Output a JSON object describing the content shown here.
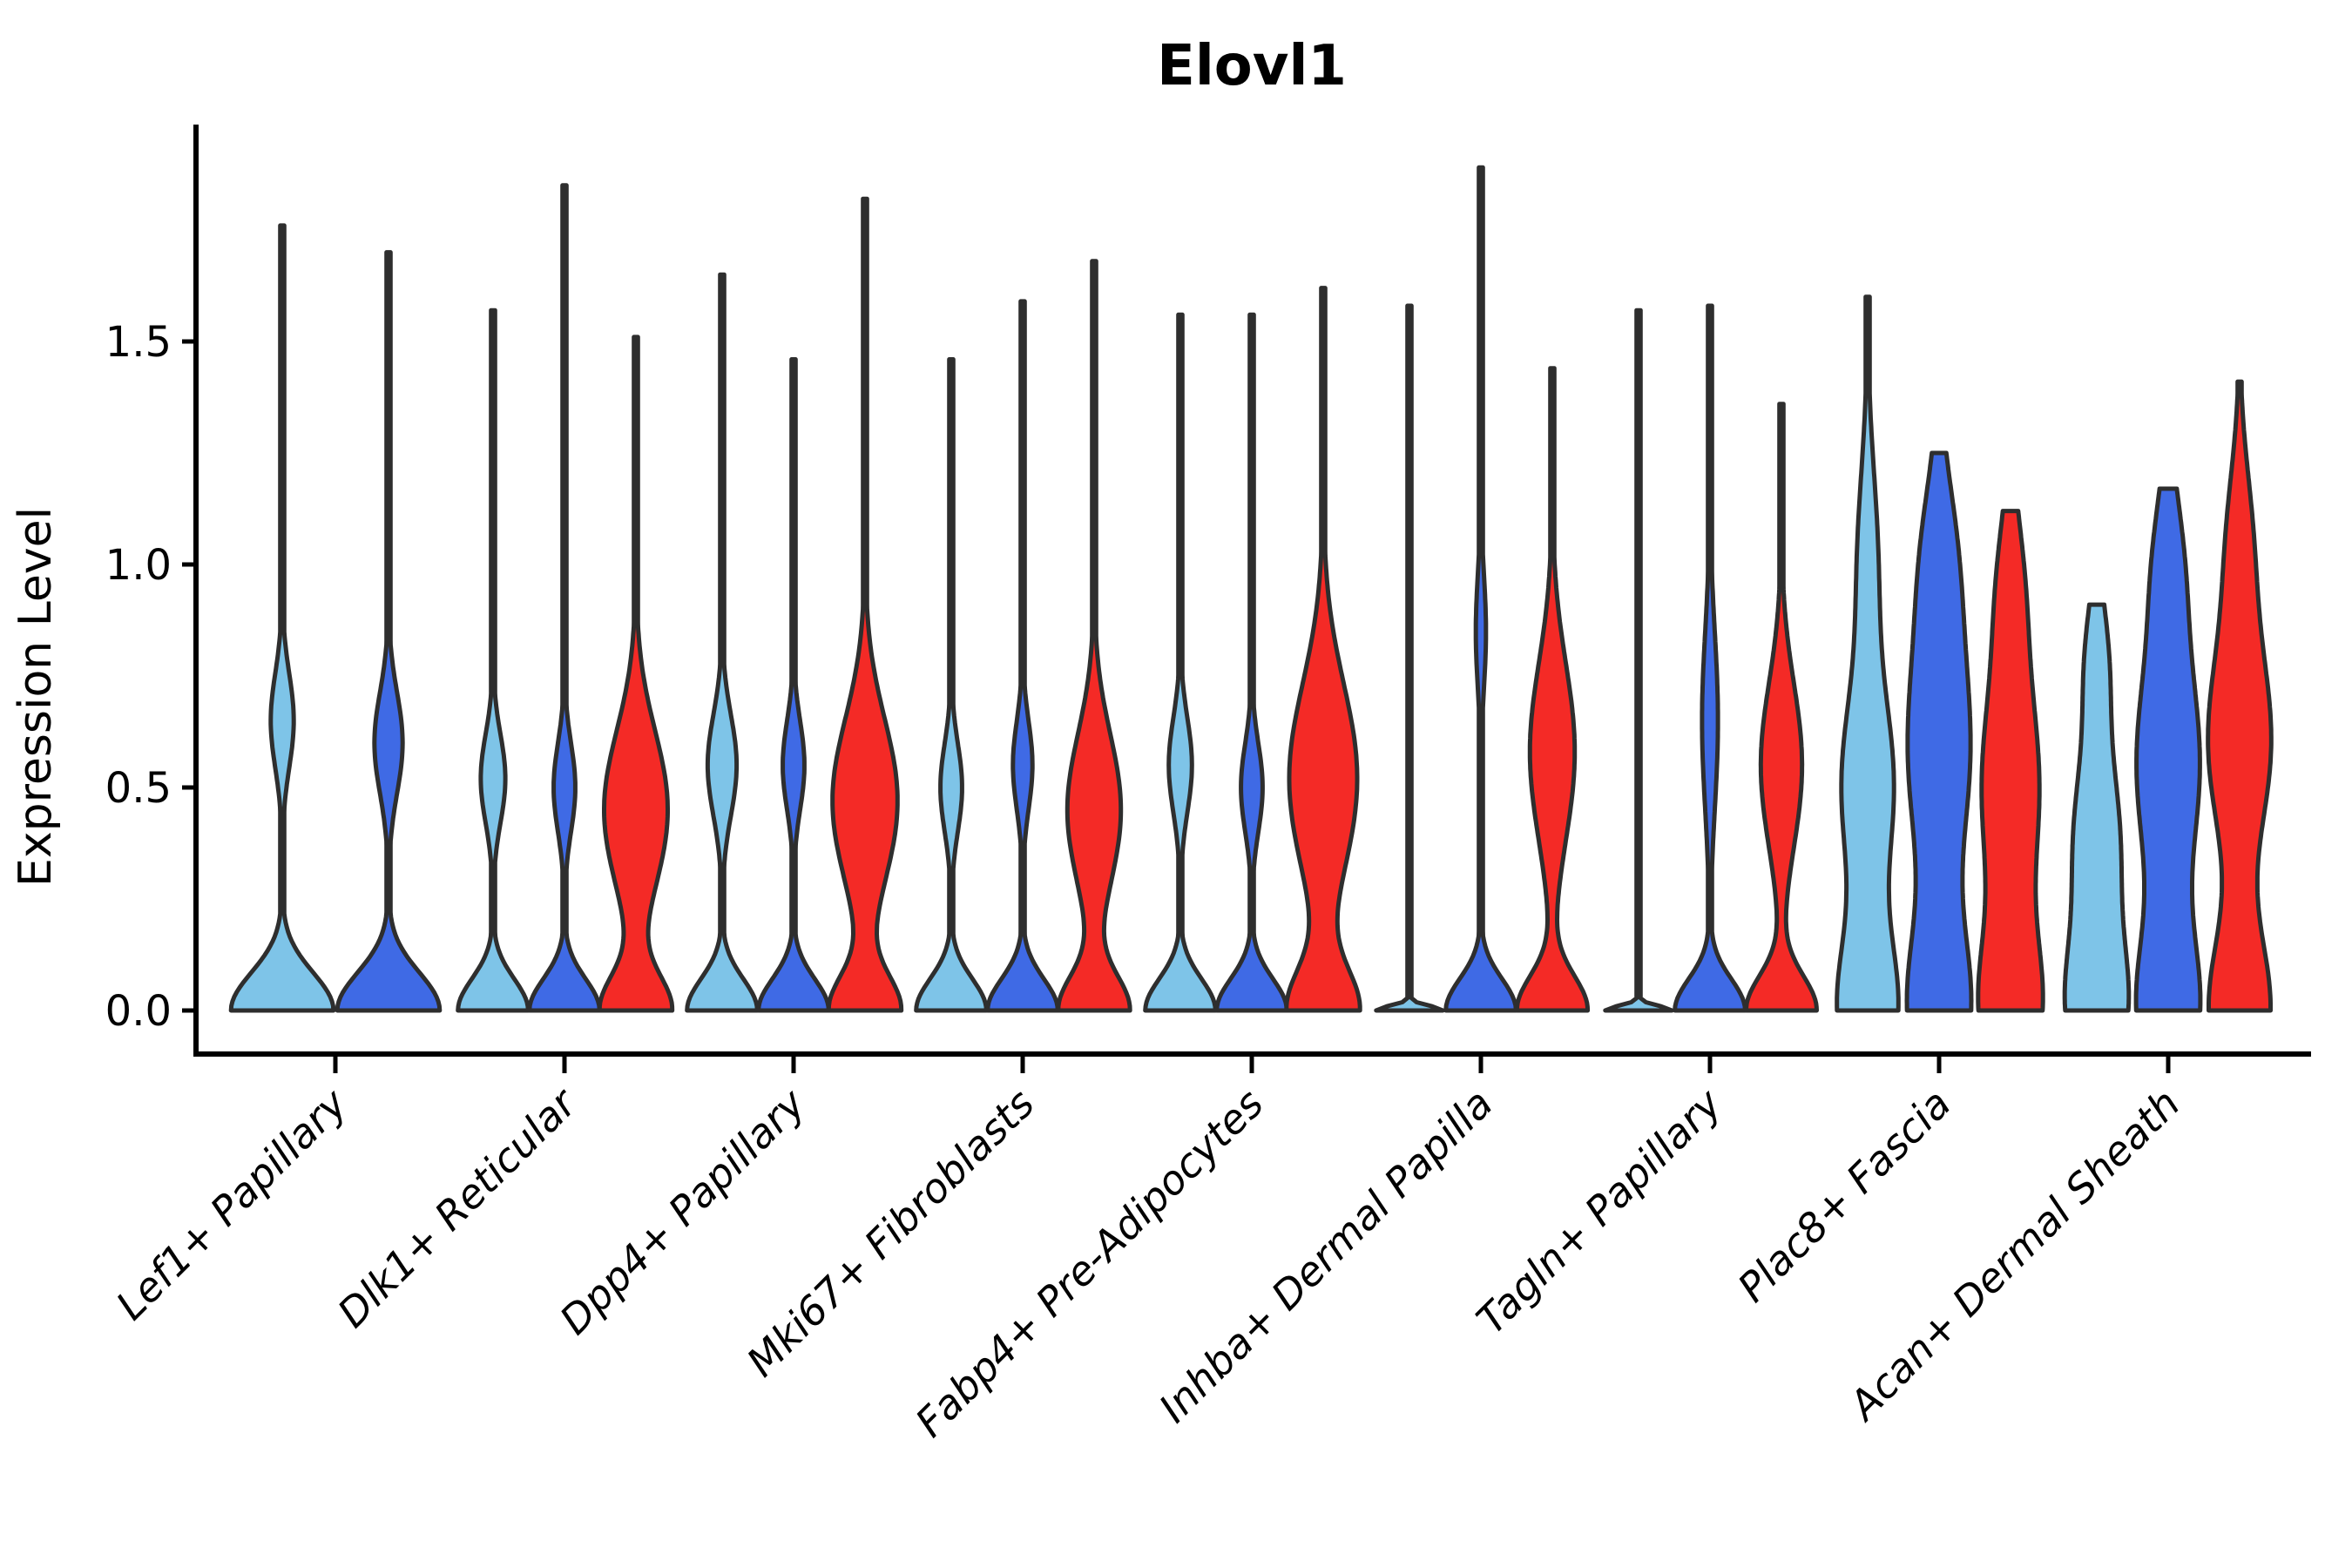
{
  "chart_data": {
    "type": "violin",
    "title": "Elovl1",
    "ylabel": "Expression Level",
    "xlabel": "",
    "ylim": [
      -0.1,
      1.98
    ],
    "grid": false,
    "legend_position": "none",
    "ytick_values": [
      0.0,
      0.5,
      1.0,
      1.5
    ],
    "ytick_labels": [
      "0.0",
      "0.5",
      "1.0",
      "1.5"
    ],
    "categories": [
      "Lef1+ Papillary",
      "Dlk1+ Reticular",
      "Dpp4+ Papillary",
      "Mki67+ Fibroblasts",
      "Fabp4+ Pre-Adipocytes",
      "Inhba+ Dermal Papilla",
      "Tagln+ Papillary",
      "Plac8+ Fascia",
      "Acan+ Dermal Sheath"
    ],
    "series": [
      {
        "id": "light-blue",
        "color": "#7EC4E8"
      },
      {
        "id": "royal-blue",
        "color": "#3F6AE5"
      },
      {
        "id": "red",
        "color": "#F42A26"
      }
    ],
    "outline_color": "#2E2E2E",
    "groups": [
      {
        "category": "Lef1+ Papillary",
        "violins": [
          {
            "series": "light-blue",
            "max": 1.76,
            "base_w": 0.98,
            "base_h": 0.12,
            "bumps": [
              {
                "c": 0.65,
                "s": 0.15,
                "w": 0.22
              }
            ]
          },
          {
            "series": "royal-blue",
            "max": 1.7,
            "base_w": 0.98,
            "base_h": 0.12,
            "bumps": [
              {
                "c": 0.6,
                "s": 0.16,
                "w": 0.27
              }
            ]
          }
        ]
      },
      {
        "category": "Dlk1+ Reticular",
        "violins": [
          {
            "series": "light-blue",
            "max": 1.57,
            "base_w": 0.97,
            "base_h": 0.1,
            "bumps": [
              {
                "c": 0.52,
                "s": 0.14,
                "w": 0.34
              }
            ]
          },
          {
            "series": "royal-blue",
            "max": 1.85,
            "base_w": 0.97,
            "base_h": 0.1,
            "bumps": [
              {
                "c": 0.5,
                "s": 0.14,
                "w": 0.3
              }
            ]
          },
          {
            "series": "red",
            "max": 1.51,
            "base_w": 0.97,
            "base_h": 0.11,
            "bumps": [
              {
                "c": 0.45,
                "s": 0.25,
                "w": 0.88
              }
            ]
          }
        ]
      },
      {
        "category": "Dpp4+ Papillary",
        "violins": [
          {
            "series": "light-blue",
            "max": 1.65,
            "base_w": 0.97,
            "base_h": 0.1,
            "bumps": [
              {
                "c": 0.55,
                "s": 0.16,
                "w": 0.4
              }
            ]
          },
          {
            "series": "royal-blue",
            "max": 1.46,
            "base_w": 0.97,
            "base_h": 0.1,
            "bumps": [
              {
                "c": 0.55,
                "s": 0.14,
                "w": 0.3
              }
            ]
          },
          {
            "series": "red",
            "max": 1.82,
            "base_w": 0.97,
            "base_h": 0.11,
            "bumps": [
              {
                "c": 0.47,
                "s": 0.26,
                "w": 0.9
              }
            ]
          }
        ]
      },
      {
        "category": "Mki67+ Fibroblasts",
        "violins": [
          {
            "series": "light-blue",
            "max": 1.46,
            "base_w": 0.97,
            "base_h": 0.1,
            "bumps": [
              {
                "c": 0.5,
                "s": 0.14,
                "w": 0.3
              }
            ]
          },
          {
            "series": "royal-blue",
            "max": 1.59,
            "base_w": 0.97,
            "base_h": 0.1,
            "bumps": [
              {
                "c": 0.55,
                "s": 0.14,
                "w": 0.27
              }
            ]
          },
          {
            "series": "red",
            "max": 1.68,
            "base_w": 0.97,
            "base_h": 0.11,
            "bumps": [
              {
                "c": 0.45,
                "s": 0.24,
                "w": 0.74
              }
            ]
          }
        ]
      },
      {
        "category": "Fabp4+ Pre-Adipocytes",
        "violins": [
          {
            "series": "light-blue",
            "max": 1.56,
            "base_w": 0.97,
            "base_h": 0.1,
            "bumps": [
              {
                "c": 0.55,
                "s": 0.15,
                "w": 0.32
              }
            ]
          },
          {
            "series": "royal-blue",
            "max": 1.56,
            "base_w": 0.97,
            "base_h": 0.1,
            "bumps": [
              {
                "c": 0.5,
                "s": 0.14,
                "w": 0.3
              }
            ]
          },
          {
            "series": "red",
            "max": 1.62,
            "base_w": 0.97,
            "base_h": 0.13,
            "bumps": [
              {
                "c": 0.52,
                "s": 0.3,
                "w": 0.94
              }
            ]
          }
        ]
      },
      {
        "category": "Inhba+ Dermal Papilla",
        "violins": [
          {
            "series": "light-blue",
            "max": 1.58,
            "base_w": 0.92,
            "base_h": 0.015,
            "bumps": []
          },
          {
            "series": "royal-blue",
            "max": 1.89,
            "base_w": 0.97,
            "base_h": 0.1,
            "bumps": [
              {
                "c": 0.85,
                "s": 0.18,
                "w": 0.14
              }
            ]
          },
          {
            "series": "red",
            "max": 1.44,
            "base_w": 0.97,
            "base_h": 0.11,
            "bumps": [
              {
                "c": 0.58,
                "s": 0.28,
                "w": 0.62
              }
            ]
          }
        ]
      },
      {
        "category": "Tagln+ Papillary",
        "violins": [
          {
            "series": "light-blue",
            "max": 1.57,
            "base_w": 0.92,
            "base_h": 0.015,
            "bumps": []
          },
          {
            "series": "royal-blue",
            "max": 1.58,
            "base_w": 0.97,
            "base_h": 0.1,
            "bumps": [
              {
                "c": 0.65,
                "s": 0.28,
                "w": 0.22
              }
            ]
          },
          {
            "series": "red",
            "max": 1.36,
            "base_w": 0.97,
            "base_h": 0.11,
            "bumps": [
              {
                "c": 0.55,
                "s": 0.26,
                "w": 0.57
              }
            ]
          }
        ]
      },
      {
        "category": "Plac8+ Fascia",
        "violins": [
          {
            "series": "light-blue",
            "max": 1.6,
            "base_w": 0.82,
            "base_h": 0.24,
            "bumps": [
              {
                "c": 0.5,
                "s": 0.28,
                "w": 0.7
              },
              {
                "c": 1.0,
                "s": 0.3,
                "w": 0.28
              }
            ]
          },
          {
            "series": "royal-blue",
            "max": 1.25,
            "base_w": 0.84,
            "base_h": 0.26,
            "bumps": [
              {
                "c": 0.58,
                "s": 0.34,
                "w": 0.84
              },
              {
                "c": 1.02,
                "s": 0.26,
                "w": 0.4
              }
            ]
          },
          {
            "series": "red",
            "max": 1.12,
            "base_w": 0.82,
            "base_h": 0.24,
            "bumps": [
              {
                "c": 0.5,
                "s": 0.32,
                "w": 0.78
              },
              {
                "c": 0.95,
                "s": 0.24,
                "w": 0.32
              }
            ]
          }
        ]
      },
      {
        "category": "Acan+ Dermal Sheath",
        "violins": [
          {
            "series": "light-blue",
            "max": 0.91,
            "base_w": 0.8,
            "base_h": 0.22,
            "bumps": [
              {
                "c": 0.38,
                "s": 0.26,
                "w": 0.62
              },
              {
                "c": 0.78,
                "s": 0.2,
                "w": 0.3
              }
            ]
          },
          {
            "series": "royal-blue",
            "max": 1.17,
            "base_w": 0.84,
            "base_h": 0.25,
            "bumps": [
              {
                "c": 0.55,
                "s": 0.32,
                "w": 0.86
              },
              {
                "c": 1.0,
                "s": 0.24,
                "w": 0.36
              }
            ]
          },
          {
            "series": "red",
            "max": 1.41,
            "base_w": 0.84,
            "base_h": 0.24,
            "bumps": [
              {
                "c": 0.6,
                "s": 0.3,
                "w": 0.86
              },
              {
                "c": 1.05,
                "s": 0.25,
                "w": 0.32
              }
            ]
          }
        ]
      }
    ]
  }
}
